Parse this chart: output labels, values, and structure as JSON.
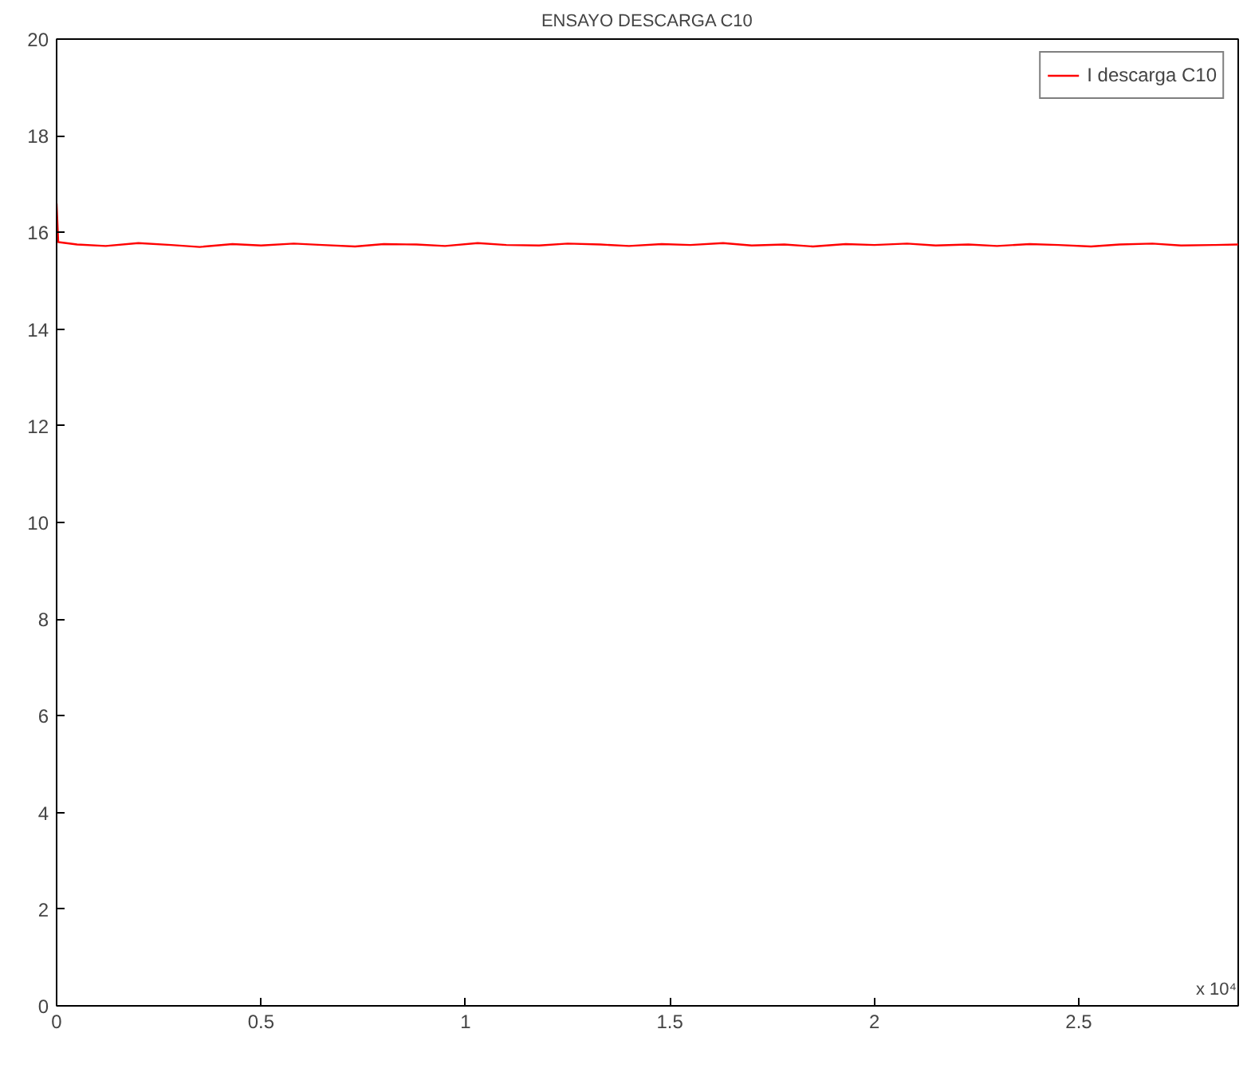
{
  "chart_data": {
    "type": "line",
    "title": "ENSAYO DESCARGA C10",
    "x": [
      0,
      0.004,
      0.05,
      0.12,
      0.2,
      0.28,
      0.35,
      0.43,
      0.5,
      0.58,
      0.65,
      0.73,
      0.8,
      0.88,
      0.95,
      1.03,
      1.1,
      1.18,
      1.25,
      1.33,
      1.4,
      1.48,
      1.55,
      1.63,
      1.7,
      1.78,
      1.85,
      1.93,
      2.0,
      2.08,
      2.15,
      2.23,
      2.3,
      2.38,
      2.45,
      2.53,
      2.6,
      2.68,
      2.75,
      2.83,
      2.89
    ],
    "series": [
      {
        "name": "I descarga C10",
        "color": "#ff0000",
        "values": [
          16.6,
          15.8,
          15.75,
          15.72,
          15.78,
          15.74,
          15.7,
          15.76,
          15.73,
          15.77,
          15.74,
          15.71,
          15.76,
          15.75,
          15.72,
          15.78,
          15.74,
          15.73,
          15.77,
          15.75,
          15.72,
          15.76,
          15.74,
          15.78,
          15.73,
          15.75,
          15.71,
          15.76,
          15.74,
          15.77,
          15.73,
          15.75,
          15.72,
          15.76,
          15.74,
          15.71,
          15.75,
          15.77,
          15.73,
          15.74,
          15.75
        ]
      }
    ],
    "xlim": [
      0,
      2.89
    ],
    "xticks": [
      0,
      0.5,
      1,
      1.5,
      2,
      2.5
    ],
    "ylim": [
      0,
      20
    ],
    "yticks": [
      0,
      2,
      4,
      6,
      8,
      10,
      12,
      14,
      16,
      18,
      20
    ],
    "annotations": [
      "x 10⁴"
    ],
    "grid": false,
    "legend": "top right",
    "line_style": "solid"
  }
}
